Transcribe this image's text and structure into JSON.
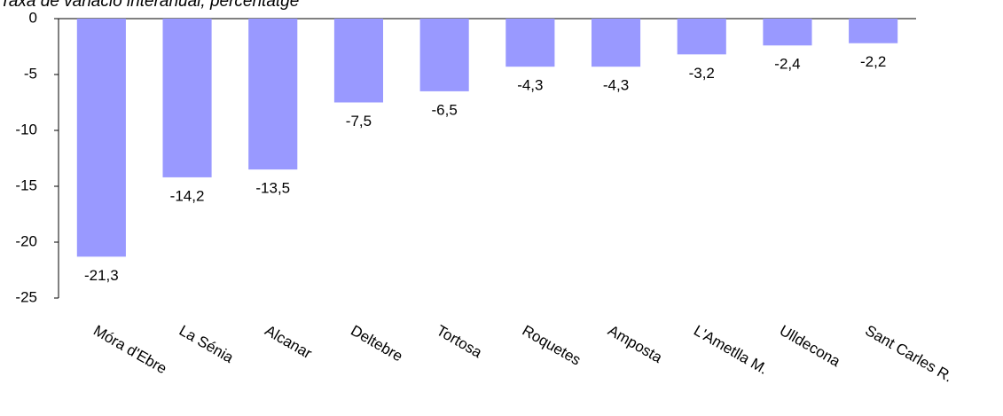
{
  "chart_data": {
    "type": "bar",
    "title": "Taxa de variació interanual, percentatge",
    "categories": [
      "Móra d'Ebre",
      "La Sénia",
      "Alcanar",
      "Deltebre",
      "Tortosa",
      "Roquetes",
      "Amposta",
      "L'Ametlla M.",
      "Ulldecona",
      "Sant Carles R."
    ],
    "values": [
      -21.3,
      -14.2,
      -13.5,
      -7.5,
      -6.5,
      -4.3,
      -4.3,
      -3.2,
      -2.4,
      -2.2
    ],
    "value_labels": [
      "-21,3",
      "-14,2",
      "-13,5",
      "-7,5",
      "-6,5",
      "-4,3",
      "-4,3",
      "-3,2",
      "-2,4",
      "-2,2"
    ],
    "color": "#9999ff",
    "ylim": [
      -25,
      0
    ],
    "yticks": [
      0,
      -5,
      -10,
      -15,
      -20,
      -25
    ],
    "grid": false
  }
}
